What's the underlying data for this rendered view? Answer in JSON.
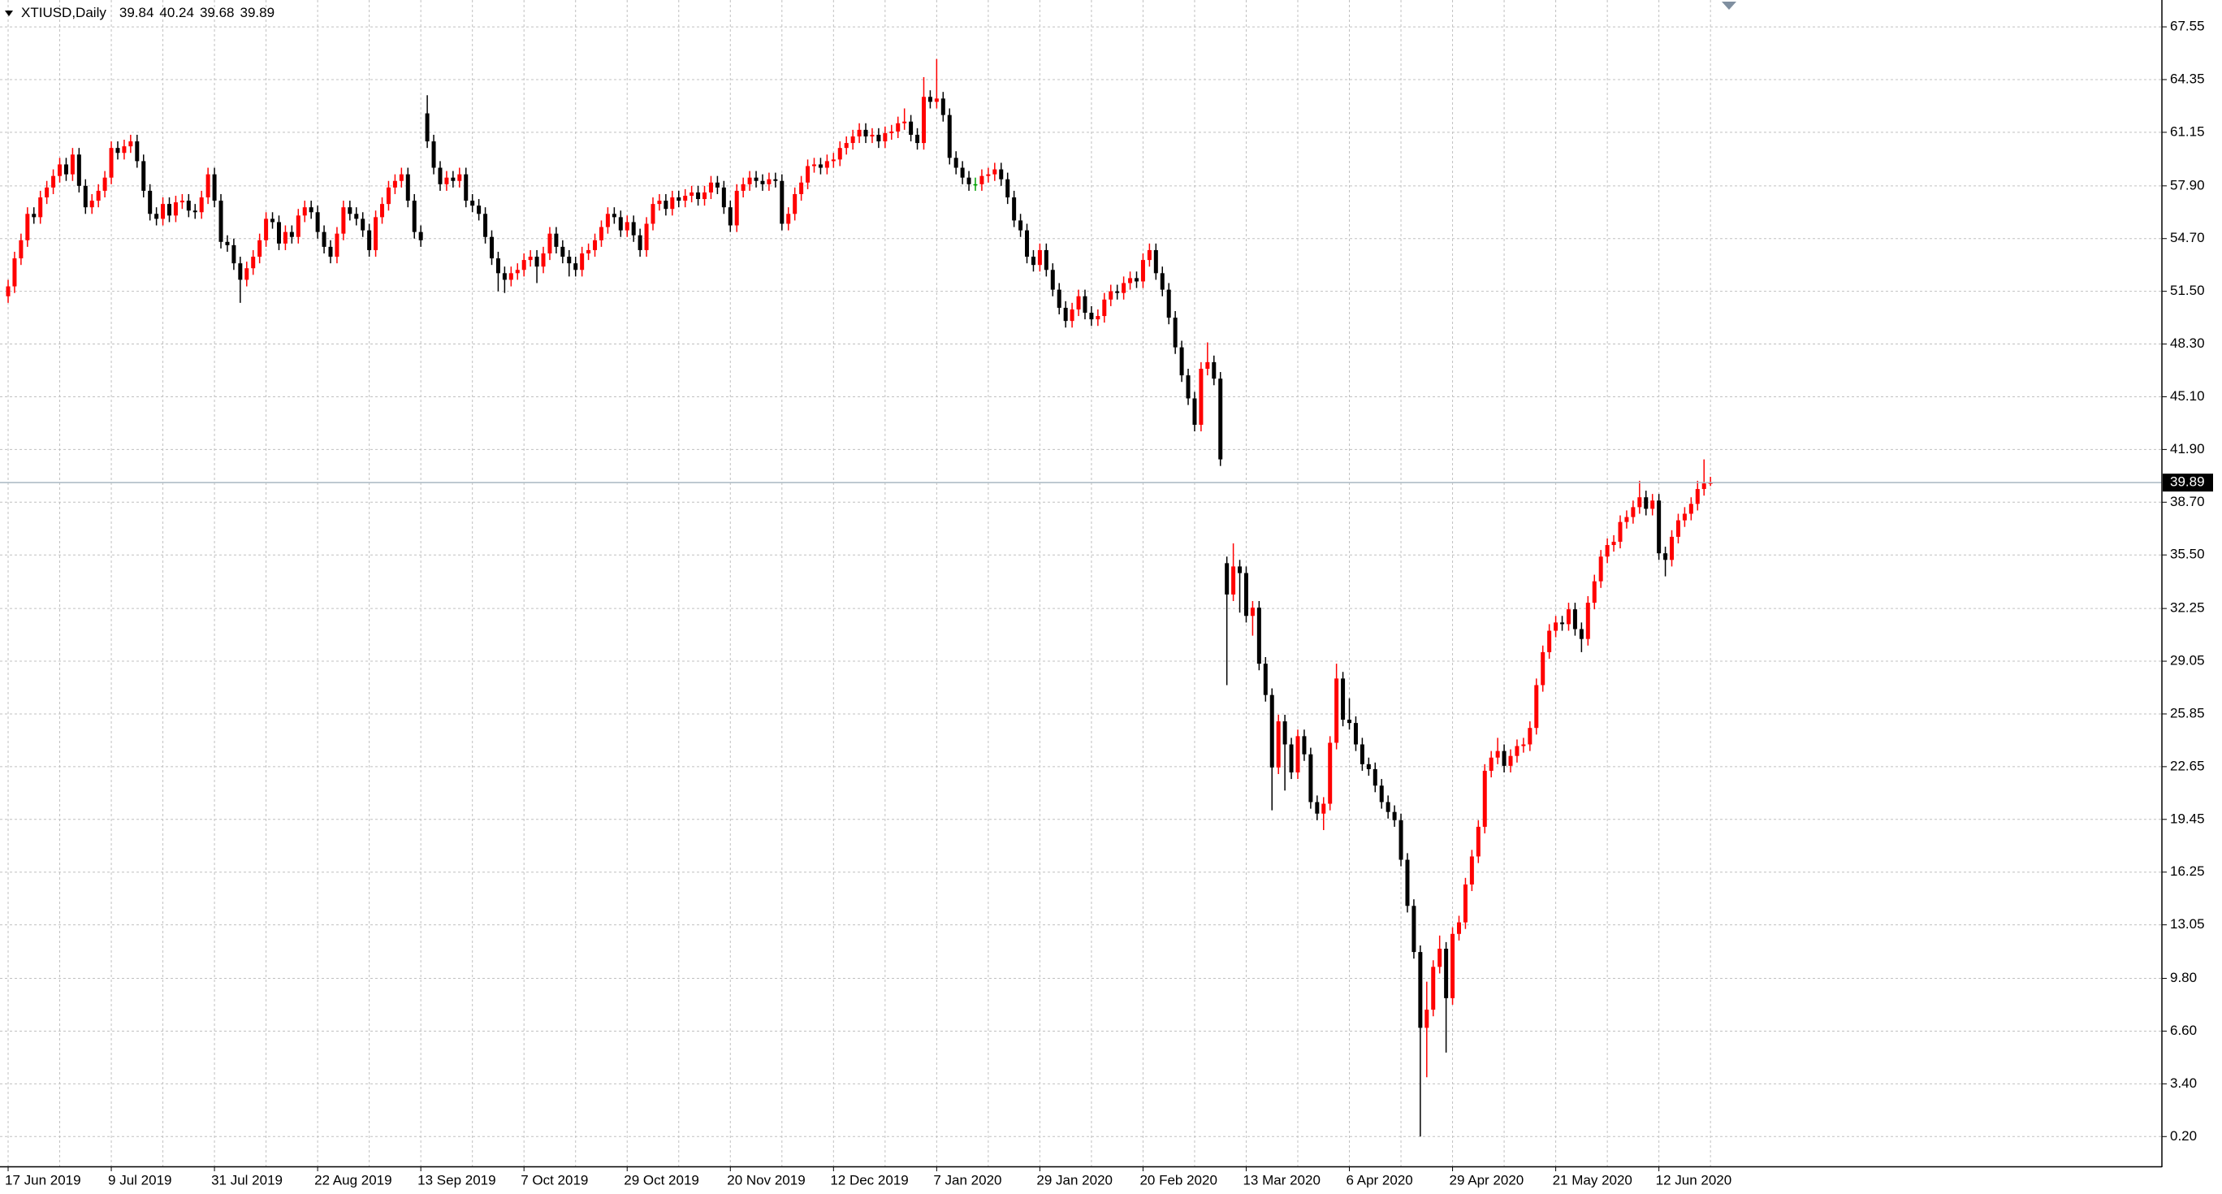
{
  "chart_data": {
    "type": "candlestick",
    "title": "XTIUSD,Daily",
    "categories": [
      "17 Jun 2019",
      null,
      null,
      null,
      null,
      null,
      null,
      null,
      null,
      null,
      null,
      null,
      null,
      null,
      null,
      null,
      "9 Jul 2019",
      null,
      null,
      null,
      null,
      null,
      null,
      null,
      null,
      null,
      null,
      null,
      null,
      null,
      null,
      null,
      "31 Jul 2019",
      null,
      null,
      null,
      null,
      null,
      null,
      null,
      null,
      null,
      null,
      null,
      null,
      null,
      null,
      null,
      "22 Aug 2019",
      null,
      null,
      null,
      null,
      null,
      null,
      null,
      null,
      null,
      null,
      null,
      null,
      null,
      null,
      null,
      "13 Sep 2019",
      null,
      null,
      null,
      null,
      null,
      null,
      null,
      null,
      null,
      null,
      null,
      null,
      null,
      null,
      null,
      "7 Oct 2019",
      null,
      null,
      null,
      null,
      null,
      null,
      null,
      null,
      null,
      null,
      null,
      null,
      null,
      null,
      null,
      "29 Oct 2019",
      null,
      null,
      null,
      null,
      null,
      null,
      null,
      null,
      null,
      null,
      null,
      null,
      null,
      null,
      null,
      "20 Nov 2019",
      null,
      null,
      null,
      null,
      null,
      null,
      null,
      null,
      null,
      null,
      null,
      null,
      null,
      null,
      null,
      "12 Dec 2019",
      null,
      null,
      null,
      null,
      null,
      null,
      null,
      null,
      null,
      null,
      null,
      null,
      null,
      null,
      null,
      "7 Jan 2020",
      null,
      null,
      null,
      null,
      null,
      null,
      null,
      null,
      null,
      null,
      null,
      null,
      null,
      null,
      null,
      "29 Jan 2020",
      null,
      null,
      null,
      null,
      null,
      null,
      null,
      null,
      null,
      null,
      null,
      null,
      null,
      null,
      null,
      "20 Feb 2020",
      null,
      null,
      null,
      null,
      null,
      null,
      null,
      null,
      null,
      null,
      null,
      null,
      null,
      null,
      null,
      "13 Mar 2020",
      null,
      null,
      null,
      null,
      null,
      null,
      null,
      null,
      null,
      null,
      null,
      null,
      null,
      null,
      null,
      "6 Apr 2020",
      null,
      null,
      null,
      null,
      null,
      null,
      null,
      null,
      null,
      null,
      null,
      null,
      null,
      null,
      null,
      "29 Apr 2020",
      null,
      null,
      null,
      null,
      null,
      null,
      null,
      null,
      null,
      null,
      null,
      null,
      null,
      null,
      null,
      "21 May 2020",
      null,
      null,
      null,
      null,
      null,
      null,
      null,
      null,
      null,
      null,
      null,
      null,
      null,
      null,
      null,
      "12 Jun 2020",
      null,
      null,
      null,
      null,
      null,
      null,
      null,
      null
    ],
    "open": [
      51.2,
      51.8,
      53.5,
      54.6,
      56.2,
      56.0,
      57.2,
      57.8,
      58.5,
      59.2,
      58.6,
      59.8,
      57.9,
      56.6,
      57.0,
      57.6,
      58.4,
      60.2,
      59.9,
      60.3,
      60.6,
      59.4,
      57.6,
      56.2,
      55.9,
      56.8,
      56.1,
      56.9,
      57.0,
      56.4,
      56.3,
      57.2,
      58.6,
      57.0,
      54.5,
      54.3,
      53.2,
      52.2,
      52.9,
      53.6,
      54.6,
      55.9,
      55.7,
      54.4,
      55.1,
      54.8,
      56.1,
      56.6,
      56.3,
      55.1,
      54.2,
      53.6,
      55.0,
      56.6,
      56.2,
      55.9,
      55.2,
      54.0,
      56.0,
      56.8,
      57.8,
      58.2,
      58.6,
      57.0,
      55.1,
      62.3,
      60.6,
      59.0,
      58.0,
      58.4,
      58.2,
      58.6,
      57.0,
      56.7,
      56.2,
      54.8,
      53.5,
      52.6,
      52.2,
      52.6,
      52.8,
      53.4,
      53.6,
      53.0,
      53.8,
      55.0,
      54.2,
      53.6,
      53.2,
      52.8,
      53.8,
      54.0,
      54.6,
      55.4,
      56.2,
      56.0,
      55.2,
      55.7,
      54.9,
      54.0,
      55.6,
      56.8,
      57.0,
      56.5,
      57.2,
      57.0,
      57.3,
      57.5,
      57.1,
      57.5,
      58.1,
      57.8,
      56.6,
      55.5,
      57.6,
      58.0,
      58.4,
      58.2,
      58.0,
      58.3,
      58.2,
      55.6,
      56.2,
      57.4,
      58.1,
      59.1,
      59.2,
      59.0,
      59.4,
      59.5,
      60.2,
      60.5,
      60.9,
      61.3,
      60.9,
      61.0,
      60.6,
      61.1,
      61.2,
      61.7,
      61.8,
      61.0,
      60.5,
      63.3,
      63.0,
      63.2,
      62.2,
      59.6,
      59.0,
      58.4,
      58.0,
      58.0,
      58.5,
      58.6,
      58.9,
      58.3,
      57.2,
      55.8,
      55.2,
      53.6,
      53.1,
      54.0,
      52.8,
      51.6,
      50.5,
      49.7,
      50.4,
      51.2,
      50.2,
      49.8,
      50.0,
      51.0,
      51.5,
      51.4,
      52.0,
      52.3,
      52.1,
      53.4,
      54.0,
      52.6,
      51.6,
      49.9,
      48.1,
      46.4,
      45.0,
      43.4,
      46.8,
      47.2,
      46.2,
      35.0,
      33.1,
      34.8,
      34.4,
      31.8,
      32.3,
      28.9,
      27.0,
      22.6,
      25.4,
      24.0,
      22.3,
      24.5,
      23.4,
      20.5,
      19.8,
      20.4,
      24.1,
      28.0,
      25.5,
      25.3,
      24.0,
      22.8,
      22.5,
      21.5,
      20.5,
      19.9,
      19.4,
      17.0,
      14.2,
      11.4,
      6.8,
      7.9,
      10.5,
      11.6,
      8.6,
      12.5,
      13.2,
      15.5,
      17.2,
      19.0,
      22.4,
      23.2,
      23.6,
      22.7,
      23.3,
      23.9,
      24.0,
      25.0,
      27.6,
      29.6,
      30.9,
      31.4,
      31.3,
      32.2,
      31.0,
      30.4,
      32.6,
      33.9,
      35.4,
      36.1,
      36.3,
      37.5,
      37.8,
      38.4,
      39.0,
      38.3,
      38.8,
      35.6,
      35.2,
      36.6,
      37.6,
      38.0,
      38.6,
      39.5,
      39.84
    ],
    "high": [
      52.2,
      53.9,
      55.0,
      56.6,
      56.6,
      57.6,
      58.2,
      58.9,
      59.6,
      59.6,
      60.2,
      60.2,
      58.3,
      57.4,
      58.0,
      58.8,
      60.6,
      60.6,
      60.7,
      61.0,
      61.0,
      59.8,
      58.0,
      56.6,
      57.2,
      57.2,
      57.3,
      57.4,
      57.4,
      56.8,
      57.6,
      59.0,
      59.0,
      57.4,
      54.9,
      54.7,
      53.6,
      53.3,
      54.0,
      55.0,
      56.3,
      56.3,
      56.1,
      55.5,
      55.5,
      56.5,
      57.0,
      57.0,
      56.7,
      55.5,
      54.6,
      55.4,
      57.0,
      57.0,
      56.6,
      56.3,
      55.6,
      56.4,
      57.2,
      58.2,
      58.6,
      59.0,
      59.0,
      57.4,
      55.5,
      63.4,
      61.0,
      59.4,
      58.8,
      58.8,
      59.0,
      59.0,
      57.4,
      57.1,
      56.6,
      55.2,
      53.9,
      53.0,
      53.0,
      53.2,
      53.8,
      54.0,
      54.0,
      54.2,
      55.4,
      55.4,
      54.6,
      54.0,
      53.6,
      54.2,
      54.4,
      55.0,
      55.8,
      56.6,
      56.6,
      56.4,
      56.1,
      56.1,
      55.3,
      56.0,
      57.2,
      57.4,
      57.4,
      57.6,
      57.6,
      57.7,
      57.9,
      57.9,
      57.9,
      58.5,
      58.5,
      58.2,
      57.0,
      58.0,
      58.4,
      58.8,
      58.8,
      58.6,
      58.7,
      58.7,
      58.6,
      56.6,
      57.8,
      58.5,
      59.5,
      59.6,
      59.6,
      59.8,
      59.9,
      60.6,
      60.9,
      61.3,
      61.7,
      61.7,
      61.4,
      61.4,
      61.5,
      61.6,
      62.1,
      62.6,
      62.2,
      61.4,
      64.5,
      63.7,
      65.6,
      63.6,
      62.6,
      60.0,
      59.4,
      58.8,
      58.4,
      58.9,
      59.0,
      59.3,
      59.3,
      58.7,
      57.6,
      56.2,
      55.6,
      54.0,
      54.4,
      54.4,
      53.2,
      52.0,
      50.9,
      50.8,
      51.6,
      51.6,
      50.6,
      50.4,
      51.4,
      51.9,
      51.9,
      52.4,
      52.7,
      52.7,
      53.8,
      54.4,
      54.4,
      53.0,
      52.0,
      50.3,
      48.5,
      46.8,
      45.4,
      47.2,
      48.4,
      47.6,
      46.6,
      35.4,
      36.2,
      35.2,
      34.8,
      32.7,
      32.7,
      29.3,
      27.4,
      25.8,
      25.8,
      24.4,
      24.9,
      24.9,
      23.8,
      20.9,
      20.8,
      24.5,
      28.9,
      28.4,
      26.8,
      25.7,
      24.4,
      23.2,
      22.9,
      21.9,
      20.9,
      20.3,
      19.8,
      17.4,
      14.6,
      11.8,
      9.6,
      10.9,
      12.4,
      12.0,
      12.9,
      13.6,
      15.9,
      17.6,
      19.4,
      22.8,
      23.6,
      24.4,
      24.0,
      23.7,
      24.3,
      24.4,
      25.4,
      28.0,
      30.0,
      31.3,
      31.8,
      31.8,
      32.6,
      32.6,
      31.4,
      33.0,
      34.3,
      35.8,
      36.5,
      36.7,
      37.9,
      38.2,
      38.8,
      40.0,
      39.4,
      39.2,
      39.2,
      36.0,
      37.0,
      38.0,
      38.4,
      39.0,
      40.0,
      41.3,
      40.24
    ],
    "low": [
      50.8,
      51.4,
      53.1,
      54.2,
      55.6,
      55.6,
      56.8,
      57.4,
      58.1,
      58.2,
      58.2,
      57.5,
      56.2,
      56.2,
      56.6,
      57.2,
      58.0,
      59.5,
      59.5,
      59.9,
      59.0,
      57.2,
      55.8,
      55.5,
      55.5,
      55.7,
      55.7,
      56.5,
      56.0,
      55.9,
      55.9,
      56.8,
      56.6,
      54.1,
      53.9,
      52.8,
      50.8,
      51.8,
      52.5,
      53.2,
      54.2,
      55.3,
      54.0,
      54.0,
      54.4,
      54.4,
      55.7,
      55.9,
      54.7,
      53.8,
      53.2,
      53.2,
      54.6,
      55.8,
      55.5,
      54.8,
      53.6,
      53.6,
      55.6,
      56.4,
      57.4,
      57.8,
      56.6,
      54.7,
      54.2,
      60.2,
      58.6,
      57.6,
      57.6,
      57.8,
      57.8,
      56.6,
      56.3,
      55.8,
      54.4,
      53.1,
      51.5,
      51.4,
      51.8,
      52.2,
      52.4,
      53.0,
      52.0,
      52.6,
      53.4,
      53.8,
      53.2,
      52.4,
      52.4,
      52.4,
      53.4,
      53.6,
      54.2,
      55.0,
      55.6,
      54.8,
      54.8,
      54.5,
      53.6,
      53.6,
      55.2,
      56.4,
      56.1,
      56.1,
      56.6,
      56.6,
      56.9,
      56.7,
      56.7,
      57.1,
      57.4,
      56.2,
      55.1,
      55.1,
      57.2,
      57.6,
      57.8,
      57.6,
      57.6,
      57.8,
      55.2,
      55.2,
      55.8,
      57.0,
      57.7,
      58.7,
      58.6,
      58.6,
      59.0,
      59.1,
      59.8,
      60.1,
      60.5,
      60.5,
      60.5,
      60.2,
      60.2,
      60.7,
      60.8,
      61.3,
      60.6,
      60.1,
      60.1,
      62.6,
      62.6,
      61.8,
      59.2,
      58.6,
      58.0,
      57.6,
      57.6,
      57.6,
      58.1,
      58.2,
      57.9,
      56.8,
      55.4,
      54.8,
      53.2,
      52.7,
      52.7,
      52.4,
      51.2,
      50.1,
      49.3,
      49.3,
      50.0,
      49.8,
      49.4,
      49.4,
      49.6,
      50.6,
      51.0,
      51.0,
      51.6,
      51.7,
      51.7,
      53.0,
      52.2,
      51.2,
      49.5,
      47.7,
      46.0,
      44.6,
      43.0,
      43.0,
      46.4,
      45.8,
      40.9,
      27.6,
      32.7,
      32.0,
      31.4,
      30.6,
      28.5,
      26.6,
      20.0,
      22.2,
      21.2,
      21.9,
      21.9,
      23.0,
      20.1,
      19.4,
      18.8,
      20.0,
      23.7,
      25.1,
      24.9,
      23.6,
      22.4,
      22.1,
      21.1,
      20.1,
      19.5,
      19.0,
      16.6,
      13.8,
      11.0,
      0.2,
      3.8,
      7.5,
      10.1,
      5.3,
      8.2,
      12.1,
      12.8,
      15.1,
      16.8,
      18.6,
      22.0,
      22.8,
      22.3,
      22.3,
      22.9,
      23.5,
      23.6,
      24.6,
      27.2,
      29.2,
      30.5,
      30.9,
      30.9,
      30.6,
      29.6,
      30.0,
      32.2,
      33.5,
      35.0,
      35.7,
      35.9,
      37.1,
      37.4,
      38.0,
      37.9,
      37.9,
      35.2,
      34.2,
      34.8,
      36.2,
      37.2,
      37.6,
      38.2,
      39.1,
      39.68
    ],
    "close": [
      51.8,
      53.5,
      54.6,
      56.2,
      56.0,
      57.2,
      57.8,
      58.5,
      59.2,
      58.6,
      59.8,
      57.9,
      56.6,
      57.0,
      57.6,
      58.4,
      60.2,
      59.9,
      60.3,
      60.6,
      59.4,
      57.6,
      56.2,
      55.9,
      56.8,
      56.1,
      56.9,
      57.0,
      56.4,
      56.3,
      57.2,
      58.6,
      57.0,
      54.5,
      54.3,
      53.2,
      52.2,
      52.9,
      53.6,
      54.6,
      55.9,
      55.7,
      54.4,
      55.1,
      54.8,
      56.1,
      56.6,
      56.3,
      55.1,
      54.2,
      53.6,
      55.0,
      56.6,
      56.2,
      55.9,
      55.2,
      54.0,
      56.0,
      56.8,
      57.8,
      58.2,
      58.6,
      57.0,
      55.1,
      54.6,
      60.6,
      59.0,
      58.0,
      58.4,
      58.2,
      58.6,
      57.0,
      56.7,
      56.2,
      54.8,
      53.5,
      52.6,
      52.2,
      52.6,
      52.8,
      53.4,
      53.6,
      53.0,
      53.8,
      55.0,
      54.2,
      53.6,
      53.2,
      52.8,
      53.8,
      54.0,
      54.6,
      55.4,
      56.2,
      56.0,
      55.2,
      55.7,
      54.9,
      54.0,
      55.6,
      56.8,
      57.0,
      56.5,
      57.2,
      57.0,
      57.3,
      57.5,
      57.1,
      57.5,
      58.1,
      57.8,
      56.6,
      55.5,
      57.6,
      58.0,
      58.4,
      58.2,
      58.0,
      58.3,
      58.2,
      55.6,
      56.2,
      57.4,
      58.1,
      59.1,
      59.2,
      59.0,
      59.4,
      59.5,
      60.2,
      60.5,
      60.9,
      61.3,
      60.9,
      61.0,
      60.6,
      61.1,
      61.2,
      61.7,
      61.8,
      61.0,
      60.5,
      63.3,
      63.0,
      63.2,
      62.2,
      59.6,
      59.0,
      58.4,
      58.0,
      58.0,
      58.5,
      58.6,
      58.9,
      58.3,
      57.2,
      55.8,
      55.2,
      53.6,
      53.1,
      54.0,
      52.8,
      51.6,
      50.5,
      49.7,
      50.4,
      51.2,
      50.2,
      49.8,
      50.0,
      51.0,
      51.5,
      51.4,
      52.0,
      52.3,
      52.1,
      53.4,
      54.0,
      52.6,
      51.6,
      49.9,
      48.1,
      46.4,
      45.0,
      43.4,
      46.8,
      47.2,
      46.2,
      41.3,
      33.1,
      34.8,
      34.4,
      31.8,
      32.3,
      28.9,
      27.0,
      22.6,
      25.4,
      24.0,
      22.3,
      24.5,
      23.4,
      20.5,
      19.8,
      20.4,
      24.1,
      28.0,
      25.5,
      25.3,
      24.0,
      22.8,
      22.5,
      21.5,
      20.5,
      19.9,
      19.4,
      17.0,
      14.2,
      11.4,
      6.8,
      7.9,
      10.5,
      11.6,
      8.6,
      12.5,
      13.2,
      15.5,
      17.2,
      19.0,
      22.4,
      23.2,
      23.6,
      22.7,
      23.3,
      23.9,
      24.0,
      25.0,
      27.6,
      29.6,
      30.9,
      31.4,
      31.3,
      32.2,
      31.0,
      30.4,
      32.6,
      33.9,
      35.4,
      36.1,
      36.3,
      37.5,
      37.8,
      38.4,
      39.0,
      38.3,
      38.8,
      35.6,
      35.2,
      36.6,
      37.6,
      38.0,
      38.6,
      39.5,
      39.84,
      39.89
    ],
    "up_color": "#ff0000",
    "down_color": "#000000",
    "doji_color": "#00a000",
    "price_line_color": "#a9b8c2",
    "ylim": [
      -1.61,
      69.18
    ],
    "yticks": [
      67.55,
      64.35,
      61.15,
      {
        "value": 57.9,
        "label": "57.90"
      },
      {
        "value": 54.7,
        "label": "54.70"
      },
      {
        "value": 51.5,
        "label": "51.50"
      },
      {
        "value": 48.3,
        "label": "48.30"
      },
      {
        "value": 45.1,
        "label": "45.10"
      },
      {
        "value": 41.9,
        "label": "41.90"
      },
      {
        "value": 38.7,
        "label": "38.70"
      },
      {
        "value": 35.5,
        "label": "35.50"
      },
      32.25,
      29.05,
      25.85,
      22.65,
      19.45,
      16.25,
      13.05,
      {
        "value": 9.8,
        "label": "9.80"
      },
      {
        "value": 6.6,
        "label": "6.60"
      },
      {
        "value": 3.4,
        "label": "3.40"
      },
      {
        "value": 0.2,
        "label": "0.20"
      }
    ],
    "grid": true
  }
}
